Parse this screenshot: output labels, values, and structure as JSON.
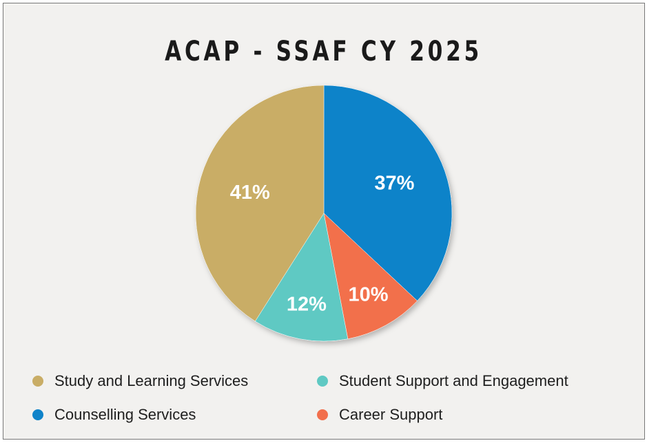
{
  "chart_data": {
    "type": "pie",
    "title": "ACAP - SSAF CY 2025",
    "start": "top",
    "direction": "clockwise",
    "slices": [
      {
        "label": "Counselling Services",
        "value": 37,
        "data_label": "37%",
        "color": "#0f83c9"
      },
      {
        "label": "Career Support",
        "value": 10,
        "data_label": "10%",
        "color": "#f26f4c"
      },
      {
        "label": "Student Support and Engagement",
        "value": 12,
        "data_label": "12%",
        "color": "#5fc9c3"
      },
      {
        "label": "Study and Learning Services",
        "value": 41,
        "data_label": "41%",
        "color": "#c9ad66"
      }
    ],
    "legend": {
      "placement": "bottom",
      "entries": [
        "Study and Learning Services",
        "Student Support and Engagement",
        "Counselling Services",
        "Career Support"
      ]
    }
  }
}
